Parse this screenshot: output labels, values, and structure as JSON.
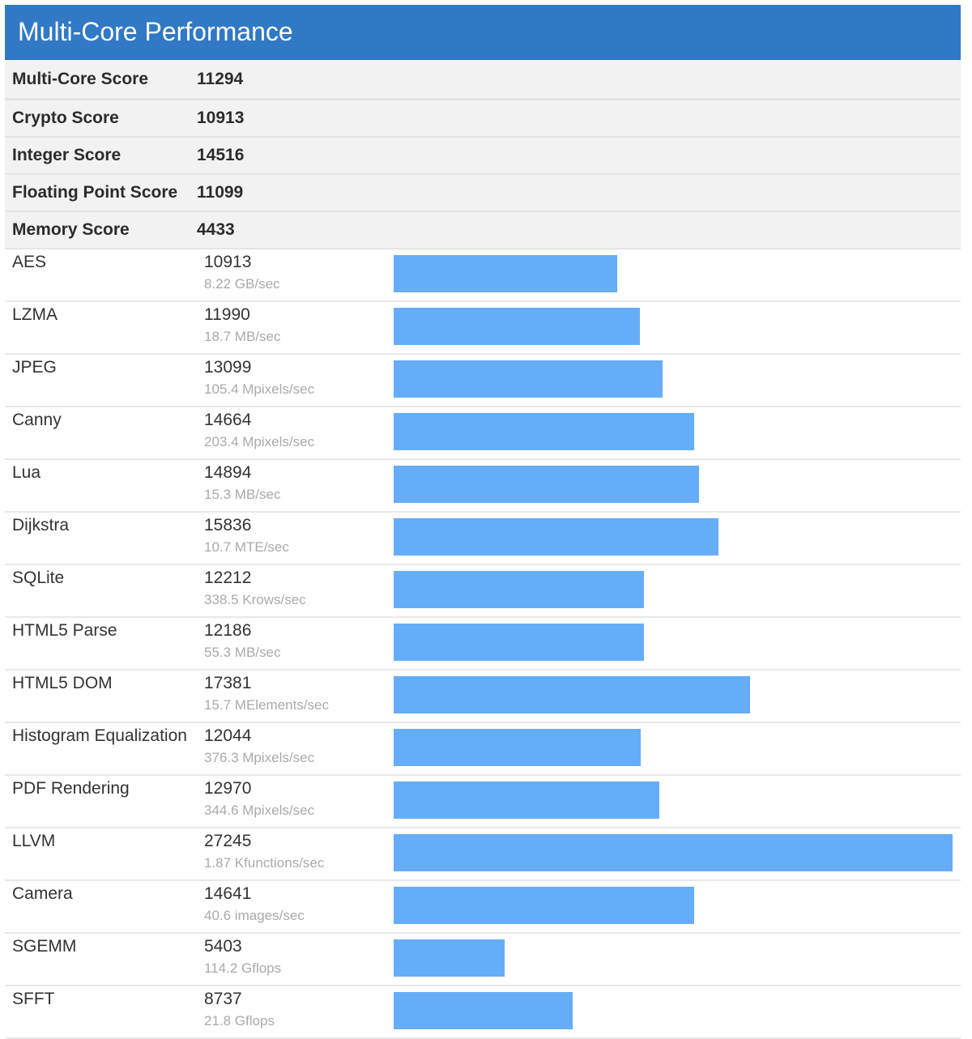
{
  "header": {
    "title": "Multi-Core Performance"
  },
  "colors": {
    "header_bg": "#3179c5",
    "bar": "#66adf7",
    "summary_bg": "#f2f2f2"
  },
  "summary": [
    {
      "label": "Multi-Core Score",
      "value": "11294"
    },
    {
      "label": "Crypto Score",
      "value": "10913"
    },
    {
      "label": "Integer Score",
      "value": "14516"
    },
    {
      "label": "Floating Point Score",
      "value": "11099"
    },
    {
      "label": "Memory Score",
      "value": "4433"
    }
  ],
  "chart_data": {
    "type": "bar",
    "orientation": "horizontal",
    "categories": [
      "AES",
      "LZMA",
      "JPEG",
      "Canny",
      "Lua",
      "Dijkstra",
      "SQLite",
      "HTML5 Parse",
      "HTML5 DOM",
      "Histogram Equalization",
      "PDF Rendering",
      "LLVM",
      "Camera",
      "SGEMM",
      "SFFT"
    ],
    "values": [
      10913,
      11990,
      13099,
      14664,
      14894,
      15836,
      12212,
      12186,
      17381,
      12044,
      12970,
      27245,
      14641,
      5403,
      8737
    ],
    "rates": [
      "8.22 GB/sec",
      "18.7 MB/sec",
      "105.4 Mpixels/sec",
      "203.4 Mpixels/sec",
      "15.3 MB/sec",
      "10.7 MTE/sec",
      "338.5 Krows/sec",
      "55.3 MB/sec",
      "15.7 MElements/sec",
      "376.3 Mpixels/sec",
      "344.6 Mpixels/sec",
      "1.87 Kfunctions/sec",
      "40.6 images/sec",
      "114.2 Gflops",
      "21.8 Gflops"
    ],
    "xlim": [
      0,
      27245
    ]
  }
}
